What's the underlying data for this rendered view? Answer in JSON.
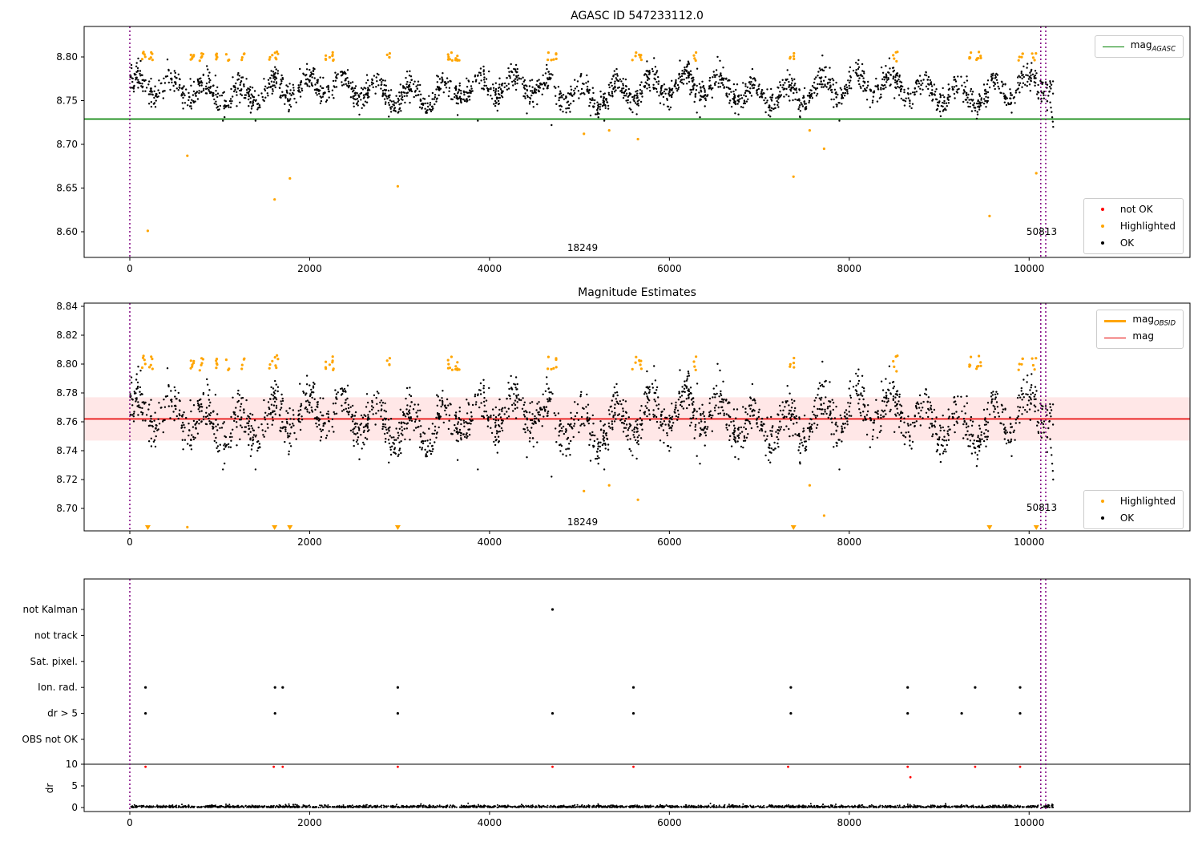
{
  "colors": {
    "ok_black": "#000000",
    "highlighted_orange": "#ffa500",
    "not_ok_red": "#ff0000",
    "mag_agasc_green": "#008000",
    "mag_red": "#e60000",
    "band_pink": "#ffbbbb",
    "vline_purple": "#800080"
  },
  "chart_data": {
    "type": "scatter",
    "x_axis": {
      "ticks": [
        0,
        2000,
        4000,
        6000,
        8000,
        10000
      ],
      "vlines": [
        0,
        10130,
        10185
      ]
    },
    "panels": [
      {
        "title": "AGASC ID 547233112.0",
        "yticks": [
          "8.60",
          "8.65",
          "8.70",
          "8.75",
          "8.80"
        ],
        "ylim": [
          8.571,
          8.835
        ],
        "hline": {
          "label_prefix": "mag",
          "label_sub": "AGASC",
          "value": 8.729,
          "color": "#008000"
        },
        "legend_markers": [
          {
            "label": "not OK",
            "color": "#ff0000"
          },
          {
            "label": "Highlighted",
            "color": "#ffa500"
          },
          {
            "label": "OK",
            "color": "#000000"
          }
        ],
        "annotations": [
          {
            "text": "18249",
            "x": 5040,
            "y": 8.582
          },
          {
            "text": "50813",
            "x": 10140,
            "y": 8.601
          }
        ]
      },
      {
        "title": "Magnitude Estimates",
        "yticks": [
          "8.70",
          "8.72",
          "8.74",
          "8.76",
          "8.78",
          "8.80",
          "8.82",
          "8.84"
        ],
        "ylim": [
          8.6844,
          8.8422
        ],
        "hline": {
          "label_prefix": "mag",
          "label_sub": "",
          "value": 8.762,
          "color": "#e60000"
        },
        "band": [
          8.747,
          8.777
        ],
        "legend_lines": [
          {
            "label_prefix": "mag",
            "label_sub": "OBSID",
            "color": "#ffa500",
            "width": 3
          },
          {
            "label_prefix": "mag",
            "label_sub": "",
            "color": "#e60000",
            "width": 1.6
          }
        ],
        "legend_markers": [
          {
            "label": "Highlighted",
            "color": "#ffa500"
          },
          {
            "label": "OK",
            "color": "#000000"
          }
        ],
        "annotations": [
          {
            "text": "18249",
            "x": 5040,
            "y": 8.6906
          },
          {
            "text": "50813",
            "x": 10140,
            "y": 8.7006
          }
        ]
      },
      {
        "flag_rows": [
          "not Kalman",
          "not track",
          "Sat. pixel.",
          "Ion. rad.",
          "dr > 5",
          "OBS not OK"
        ],
        "flag_points": {
          "not Kalman": [
            4700
          ],
          "not track": [],
          "Sat. pixel.": [],
          "Ion. rad.": [
            175,
            1615,
            1700,
            2980,
            5600,
            7350,
            8650,
            9400,
            9900
          ],
          "dr > 5": [
            175,
            1615,
            2980,
            4700,
            5600,
            7350,
            8650,
            9250,
            9900
          ],
          "OBS not OK": []
        },
        "dr_axis": {
          "label": "dr",
          "ticks": [
            0,
            5,
            10
          ],
          "threshold_line": 10,
          "red_points": [
            [
              175,
              9.4
            ],
            [
              1600,
              9.4
            ],
            [
              1700,
              9.4
            ],
            [
              2980,
              9.4
            ],
            [
              4700,
              9.4
            ],
            [
              5600,
              9.4
            ],
            [
              7320,
              9.4
            ],
            [
              8650,
              9.4
            ],
            [
              8680,
              7.0
            ],
            [
              9400,
              9.4
            ],
            [
              9900,
              9.4
            ]
          ],
          "baseline": {
            "seed": 11,
            "n": 2200,
            "spread": 0.25,
            "max_dr": 1.4
          }
        }
      }
    ],
    "scatter": {
      "seed": 7,
      "n": 2400,
      "x_max": 10270,
      "base": 8.7625,
      "wave1": {
        "amp": 0.0125,
        "period": 381,
        "phase": 0.3
      },
      "wave2": {
        "amp": 0.006,
        "period": 2027,
        "phase": 1.3
      },
      "noise": 0.0075,
      "clip": [
        8.727,
        8.807
      ],
      "highlight_clusters": [
        150,
        230,
        700,
        800,
        950,
        1100,
        1250,
        1560,
        1630,
        2200,
        2280,
        2870,
        3560,
        3640,
        4660,
        4740,
        5610,
        5690,
        6300,
        7360,
        8510,
        9360,
        9440,
        9910,
        10050
      ],
      "highlight_mag_range": [
        8.795,
        8.806
      ],
      "orange_low_outliers": [
        [
          200,
          8.601
        ],
        [
          640,
          8.687
        ],
        [
          1610,
          8.637
        ],
        [
          1780,
          8.661
        ],
        [
          2980,
          8.652
        ],
        [
          5050,
          8.712
        ],
        [
          5330,
          8.716
        ],
        [
          5650,
          8.706
        ],
        [
          7380,
          8.663
        ],
        [
          7560,
          8.716
        ],
        [
          7720,
          8.695
        ],
        [
          9560,
          8.618
        ],
        [
          10080,
          8.667
        ]
      ],
      "black_low_outliers": [
        [
          3870,
          8.727
        ],
        [
          4690,
          8.722
        ],
        [
          5210,
          8.731
        ],
        [
          6340,
          8.731
        ],
        [
          7890,
          8.727
        ],
        [
          10235,
          8.748
        ],
        [
          10243,
          8.742
        ],
        [
          10250,
          8.737
        ],
        [
          10257,
          8.731
        ],
        [
          10263,
          8.726
        ],
        [
          10268,
          8.72
        ]
      ]
    }
  }
}
